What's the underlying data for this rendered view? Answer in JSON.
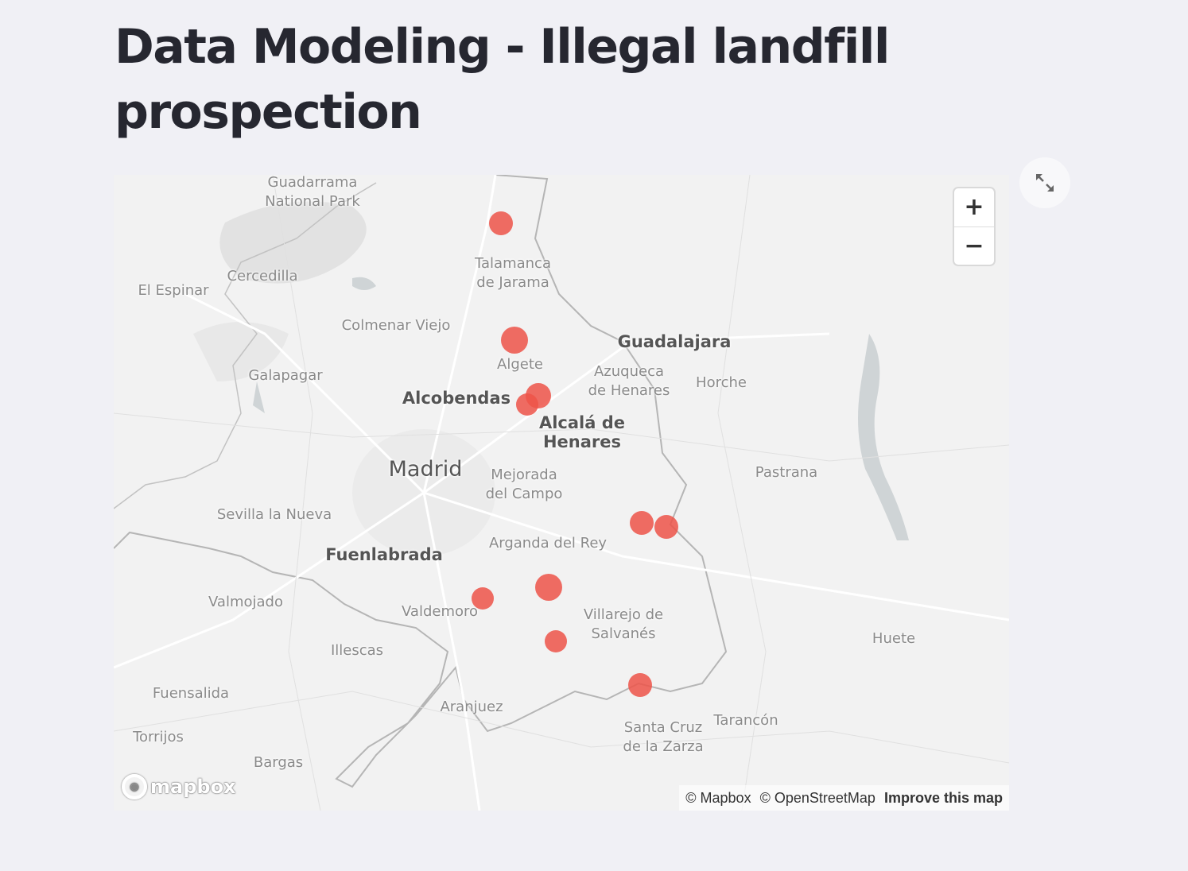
{
  "page": {
    "title": "Data Modeling - Illegal landfill prospection"
  },
  "map": {
    "icons": {
      "fullscreen": "expand-arrows-icon",
      "zoom_in": "plus-icon",
      "zoom_out": "minus-icon"
    },
    "zoom_in_label": "+",
    "zoom_out_label": "−",
    "marker_color": "#ed5449",
    "labels": [
      {
        "id": "guadarrama",
        "text": "Guadarrama\nNational Park",
        "class": "",
        "x": 0,
        "y": 0
      },
      {
        "id": "talamanca",
        "text": "Talamanca\nde Jarama"
      },
      {
        "id": "cercedilla",
        "text": "Cercedilla"
      },
      {
        "id": "el-espinar",
        "text": "El Espinar"
      },
      {
        "id": "colmenar-viejo",
        "text": "Colmenar Viejo"
      },
      {
        "id": "guadalajara",
        "text": "Guadalajara"
      },
      {
        "id": "algete",
        "text": "Algete"
      },
      {
        "id": "azuqueca",
        "text": "Azuqueca\nde Henares"
      },
      {
        "id": "horche",
        "text": "Horche"
      },
      {
        "id": "galapagar",
        "text": "Galapagar"
      },
      {
        "id": "alcobendas",
        "text": "Alcobendas"
      },
      {
        "id": "alcala",
        "text": "Alcalá de\nHenares"
      },
      {
        "id": "madrid",
        "text": "Madrid"
      },
      {
        "id": "mejorada",
        "text": "Mejorada\ndel Campo"
      },
      {
        "id": "pastrana",
        "text": "Pastrana"
      },
      {
        "id": "sevilla",
        "text": "Sevilla la Nueva"
      },
      {
        "id": "fuenlabrada",
        "text": "Fuenlabrada"
      },
      {
        "id": "arganda",
        "text": "Arganda del Rey"
      },
      {
        "id": "valmojado",
        "text": "Valmojado"
      },
      {
        "id": "valdemoro",
        "text": "Valdemoro"
      },
      {
        "id": "villarejo",
        "text": "Villarejo de\nSalvanés"
      },
      {
        "id": "illescas",
        "text": "Illescas"
      },
      {
        "id": "huete",
        "text": "Huete"
      },
      {
        "id": "fuensalida",
        "text": "Fuensalida"
      },
      {
        "id": "aranjuez",
        "text": "Aranjuez"
      },
      {
        "id": "santa-cruz",
        "text": "Santa Cruz\nde la Zarza"
      },
      {
        "id": "tarancon",
        "text": "Tarancón"
      },
      {
        "id": "torrijos",
        "text": "Torrijos"
      },
      {
        "id": "bargas",
        "text": "Bargas"
      }
    ],
    "attribution": {
      "mapbox": "© Mapbox",
      "osm": "© OpenStreetMap",
      "improve": "Improve this map"
    },
    "logo_text": "mapbox"
  }
}
